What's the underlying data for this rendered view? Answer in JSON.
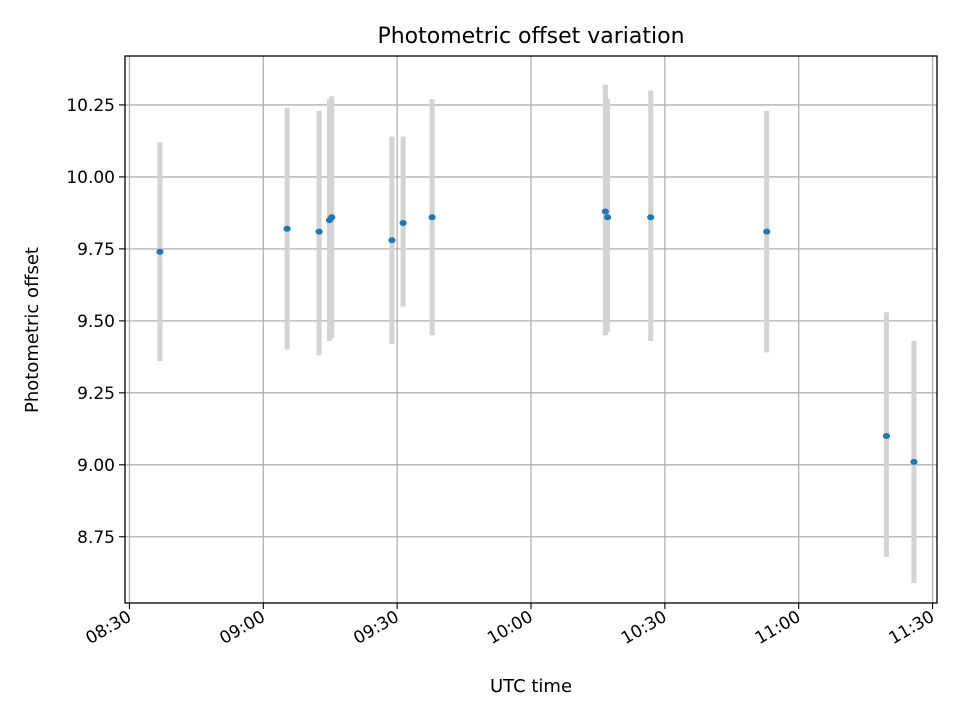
{
  "chart_data": {
    "type": "scatter",
    "title": "Photometric offset variation",
    "xlabel": "UTC time",
    "ylabel": "Photometric offset",
    "x_type": "time",
    "xlim": [
      "08:29",
      "11:31"
    ],
    "ylim": [
      8.52,
      10.42
    ],
    "x_ticks": [
      "08:30",
      "09:00",
      "09:30",
      "10:00",
      "10:30",
      "11:00",
      "11:30"
    ],
    "y_ticks": [
      "8.75",
      "9.00",
      "9.25",
      "9.50",
      "9.75",
      "10.00",
      "10.25"
    ],
    "grid": true,
    "marker_color": "#1f77b4",
    "errorbar_color": "#d3d3d3",
    "points": [
      {
        "time": "08:36:50",
        "y": 9.74,
        "lo": 9.36,
        "hi": 10.12
      },
      {
        "time": "09:05:20",
        "y": 9.82,
        "lo": 9.4,
        "hi": 10.24
      },
      {
        "time": "09:12:30",
        "y": 9.81,
        "lo": 9.38,
        "hi": 10.23
      },
      {
        "time": "09:14:50",
        "y": 9.85,
        "lo": 9.43,
        "hi": 10.27
      },
      {
        "time": "09:15:20",
        "y": 9.86,
        "lo": 9.44,
        "hi": 10.28
      },
      {
        "time": "09:28:50",
        "y": 9.78,
        "lo": 9.42,
        "hi": 10.14
      },
      {
        "time": "09:31:20",
        "y": 9.84,
        "lo": 9.55,
        "hi": 10.14
      },
      {
        "time": "09:37:50",
        "y": 9.86,
        "lo": 9.45,
        "hi": 10.27
      },
      {
        "time": "10:16:40",
        "y": 9.88,
        "lo": 9.45,
        "hi": 10.32
      },
      {
        "time": "10:17:10",
        "y": 9.86,
        "lo": 9.46,
        "hi": 10.27
      },
      {
        "time": "10:26:50",
        "y": 9.86,
        "lo": 9.43,
        "hi": 10.3
      },
      {
        "time": "10:52:50",
        "y": 9.81,
        "lo": 9.39,
        "hi": 10.23
      },
      {
        "time": "11:19:40",
        "y": 9.1,
        "lo": 8.68,
        "hi": 9.53
      },
      {
        "time": "11:25:50",
        "y": 9.01,
        "lo": 8.59,
        "hi": 9.43
      }
    ]
  }
}
